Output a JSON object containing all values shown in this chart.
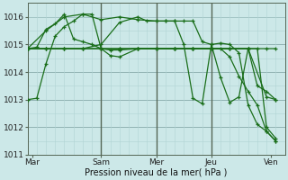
{
  "title": "",
  "xlabel": "Pression niveau de la mer( hPa )",
  "bg_color": "#cce8e8",
  "grid_color_minor": "#b0d4d4",
  "grid_color_major": "#88aaaa",
  "line_color": "#1a6e1a",
  "day_line_color": "#556655",
  "ylim": [
    1011.0,
    1016.5
  ],
  "xlim": [
    0,
    28
  ],
  "xtick_labels": [
    "Mar",
    "Sam",
    "Mer",
    "Jeu",
    "Ven"
  ],
  "xtick_positions": [
    0.5,
    8,
    14,
    20,
    26.5
  ],
  "day_vlines": [
    8,
    14,
    20
  ],
  "ytick_values": [
    1011,
    1012,
    1013,
    1014,
    1015,
    1016
  ],
  "lines": [
    {
      "x": [
        0,
        1,
        2,
        3,
        4,
        5,
        6,
        7,
        8,
        9,
        10,
        12,
        14,
        16,
        18,
        20,
        22,
        24,
        26,
        27
      ],
      "y": [
        1013.0,
        1013.05,
        1014.3,
        1015.3,
        1015.65,
        1015.85,
        1016.1,
        1016.1,
        1014.85,
        1014.6,
        1014.55,
        1014.85,
        1014.85,
        1014.85,
        1014.85,
        1014.85,
        1014.85,
        1014.85,
        1014.85,
        1014.85
      ]
    },
    {
      "x": [
        0,
        2,
        4,
        6,
        8,
        10,
        12,
        14,
        16,
        18,
        20,
        22,
        24,
        25,
        26,
        27
      ],
      "y": [
        1014.85,
        1014.85,
        1014.85,
        1014.85,
        1014.85,
        1014.85,
        1014.85,
        1014.85,
        1014.85,
        1014.85,
        1014.85,
        1014.85,
        1014.85,
        1013.5,
        1013.3,
        1013.0
      ]
    },
    {
      "x": [
        0,
        1,
        2,
        3,
        4,
        5,
        6,
        7,
        8,
        9,
        10,
        12,
        14,
        16,
        18,
        20,
        22,
        24,
        26,
        27
      ],
      "y": [
        1014.85,
        1014.9,
        1015.55,
        1015.75,
        1016.1,
        1015.2,
        1015.1,
        1015.0,
        1014.85,
        1014.8,
        1014.8,
        1014.85,
        1014.85,
        1014.85,
        1014.85,
        1014.85,
        1014.85,
        1014.85,
        1013.1,
        1013.0
      ]
    },
    {
      "x": [
        0,
        2,
        4,
        6,
        8,
        10,
        12,
        14,
        15,
        16,
        17,
        18,
        19,
        20,
        21,
        22,
        23,
        24,
        25,
        26,
        27
      ],
      "y": [
        1014.85,
        1015.5,
        1016.0,
        1016.1,
        1015.9,
        1016.0,
        1015.9,
        1015.85,
        1015.85,
        1015.85,
        1015.85,
        1015.85,
        1015.1,
        1015.0,
        1013.8,
        1012.9,
        1013.1,
        1014.85,
        1014.85,
        1012.0,
        1011.6
      ]
    },
    {
      "x": [
        0,
        2,
        4,
        6,
        8,
        10,
        12,
        13,
        14,
        15,
        16,
        17,
        18,
        19,
        20,
        21,
        22,
        23,
        24,
        25,
        26,
        27
      ],
      "y": [
        1014.85,
        1014.85,
        1014.85,
        1014.85,
        1015.0,
        1015.8,
        1016.0,
        1015.85,
        1015.85,
        1015.85,
        1015.85,
        1015.0,
        1013.05,
        1012.85,
        1015.0,
        1015.05,
        1015.0,
        1014.7,
        1012.8,
        1012.1,
        1011.85,
        1011.5
      ]
    },
    {
      "x": [
        0,
        2,
        4,
        6,
        8,
        10,
        12,
        14,
        16,
        18,
        20,
        21,
        22,
        23,
        24,
        25,
        26,
        27
      ],
      "y": [
        1014.85,
        1014.85,
        1014.85,
        1014.85,
        1014.85,
        1014.85,
        1014.85,
        1014.85,
        1014.85,
        1014.85,
        1014.85,
        1014.85,
        1014.55,
        1013.85,
        1013.3,
        1012.8,
        1011.85,
        1011.5
      ]
    }
  ]
}
